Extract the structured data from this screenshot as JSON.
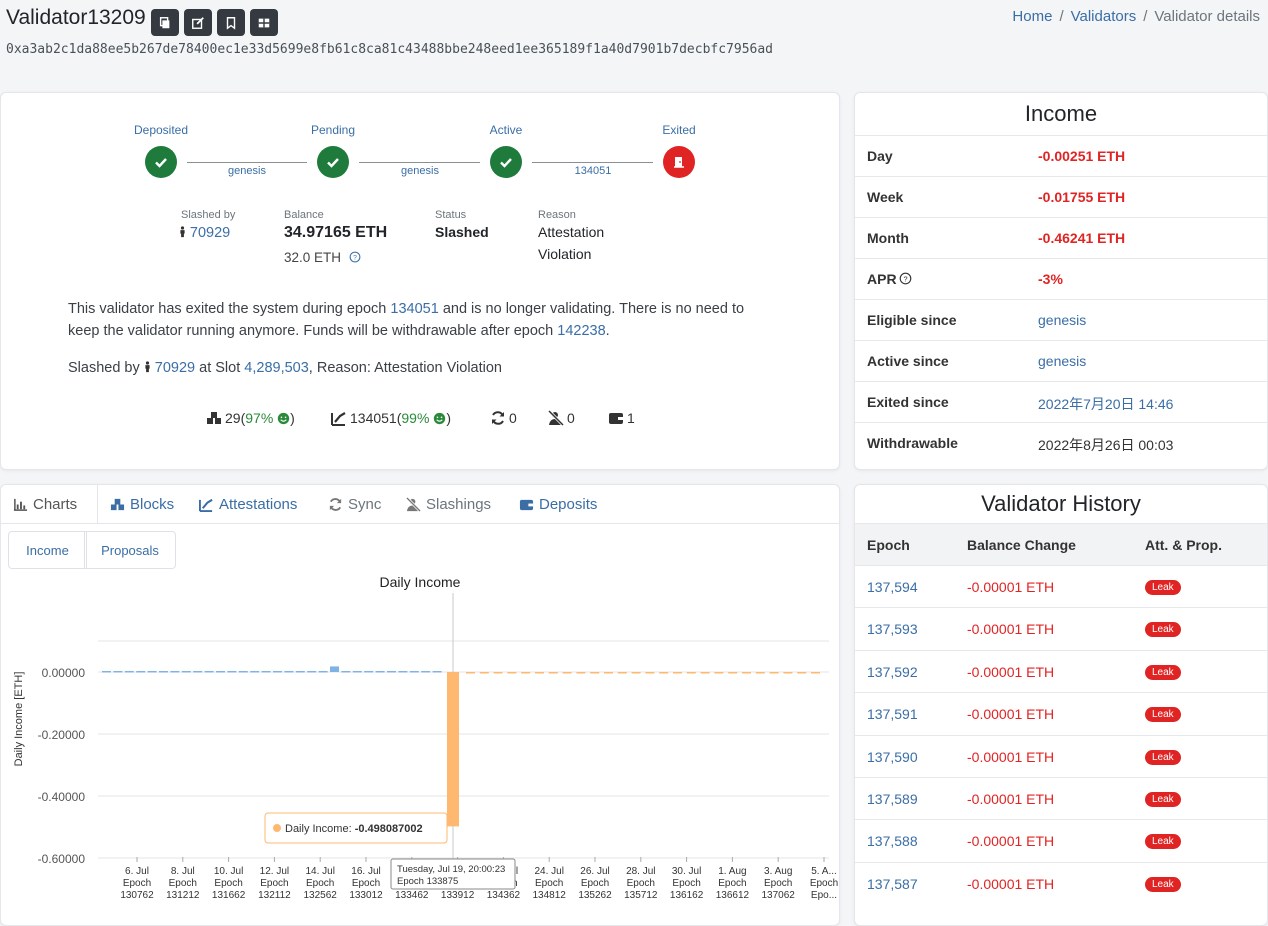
{
  "header": {
    "title": "Validator13209",
    "pubkey": "0xa3ab2c1da88ee5b267de78400ec1e33d5699e8fb61c8ca81c43488bbe248eed1ee365189f1a40d7901b7decbfc7956ad",
    "breadcrumb": {
      "home": "Home",
      "validators": "Validators",
      "current": "Validator details"
    },
    "buttons": [
      {
        "icon": "copy-icon"
      },
      {
        "icon": "edit-icon"
      },
      {
        "icon": "bookmark-icon"
      },
      {
        "icon": "table-icon"
      }
    ]
  },
  "status": {
    "stages": [
      {
        "label": "Deposited",
        "state": "ok"
      },
      {
        "label": "Pending",
        "state": "ok"
      },
      {
        "label": "Active",
        "state": "ok"
      },
      {
        "label": "Exited",
        "state": "exit"
      }
    ],
    "connectors": [
      "genesis",
      "genesis",
      "134051"
    ],
    "slashed_by_label": "Slashed by",
    "slashed_by_value": "70929",
    "balance_label": "Balance",
    "balance_value": "34.97165 ETH",
    "effective_balance": "32.0 ETH",
    "status_label": "Status",
    "status_value": "Slashed",
    "reason_label": "Reason",
    "reason_line1": "Attestation",
    "reason_line2": "Violation",
    "message": {
      "p1": "This validator has exited the system during epoch ",
      "epoch": "134051",
      "p2": " and is no longer validating. There is no need to keep the validator running anymore. Funds will be withdrawable after epoch ",
      "withdraw_epoch": "142238",
      "p3": "."
    },
    "slash_line": {
      "prefix": "Slashed by ",
      "validator": "70929",
      "mid": " at Slot ",
      "slot": "4,289,503",
      "suffix": ", Reason: Attestation Violation"
    },
    "stats": {
      "blocks": "29",
      "blocks_pct": "97%",
      "attestations": "134051",
      "attestations_pct": "99%",
      "sync": "0",
      "slashings": "0",
      "deposits": "1"
    }
  },
  "income": {
    "title": "Income",
    "rows": [
      {
        "label": "Day",
        "value": "-0.00251 ETH",
        "style": "neg"
      },
      {
        "label": "Week",
        "value": "-0.01755 ETH",
        "style": "neg"
      },
      {
        "label": "Month",
        "value": "-0.46241 ETH",
        "style": "neg"
      },
      {
        "label": "APR",
        "value": "-3%",
        "style": "neg"
      },
      {
        "label": "Eligible since",
        "value": "genesis",
        "style": "link"
      },
      {
        "label": "Active since",
        "value": "genesis",
        "style": "link"
      },
      {
        "label": "Exited since",
        "value": "2022年7月20日 14:46",
        "style": "link"
      },
      {
        "label": "Withdrawable",
        "value": "2022年8月26日 00:03",
        "style": "plain"
      }
    ]
  },
  "tabs": [
    {
      "label": "Charts",
      "icon": "chart-icon",
      "active": true
    },
    {
      "label": "Blocks",
      "icon": "cubes-icon",
      "active": false
    },
    {
      "label": "Attestations",
      "icon": "attestation-icon",
      "active": false
    },
    {
      "label": "Sync",
      "icon": "sync-icon",
      "active": false
    },
    {
      "label": "Slashings",
      "icon": "slashings-icon",
      "active": false
    },
    {
      "label": "Deposits",
      "icon": "wallet-icon",
      "active": false
    }
  ],
  "subtabs": [
    {
      "label": "Income"
    },
    {
      "label": "Proposals"
    }
  ],
  "chart_data": {
    "type": "bar",
    "title": "Daily Income",
    "ylabel": "Daily Income [ETH]",
    "ylim": [
      -0.6,
      0.1
    ],
    "yticks": [
      "0.00000",
      "-0.20000",
      "-0.40000",
      "-0.60000"
    ],
    "xticks": [
      {
        "date": "6. Jul",
        "epoch": "130762"
      },
      {
        "date": "8. Jul",
        "epoch": "131212"
      },
      {
        "date": "10. Jul",
        "epoch": "131662"
      },
      {
        "date": "12. Jul",
        "epoch": "132112"
      },
      {
        "date": "14. Jul",
        "epoch": "132562"
      },
      {
        "date": "16. Jul",
        "epoch": "133012"
      },
      {
        "date": "18. Jul",
        "epoch": "133462"
      },
      {
        "date": "20. Jul",
        "epoch": "133912"
      },
      {
        "date": "22. Jul",
        "epoch": "134362"
      },
      {
        "date": "24. Jul",
        "epoch": "134812"
      },
      {
        "date": "26. Jul",
        "epoch": "135262"
      },
      {
        "date": "28. Jul",
        "epoch": "135712"
      },
      {
        "date": "30. Jul",
        "epoch": "136162"
      },
      {
        "date": "1. Aug",
        "epoch": "136612"
      },
      {
        "date": "3. Aug",
        "epoch": "137062"
      },
      {
        "date": "5. A...",
        "epoch": "Epo..."
      }
    ],
    "series": [
      {
        "values_before_exit": [
          0.0001,
          0.0001,
          0.0001,
          0.0001,
          0.0001,
          0.0001,
          0.0001,
          0.0001,
          0.0001,
          0.0001,
          0.0001,
          0.0001,
          0.0001,
          0.0001,
          0.0001,
          0.0001,
          0.0001,
          0.0001,
          0.0001,
          0.0001,
          0.018,
          0.0001,
          0.0001,
          0.0001,
          0.0001,
          0.0001,
          0.0001,
          0.0001,
          0.0001,
          0.0001
        ],
        "exit_value": -0.498087002,
        "values_after_exit": -0.0025,
        "days_after_exit": 26
      }
    ],
    "tooltip": {
      "series_label": "Daily Income: ",
      "value": "-0.498087002",
      "date": "Tuesday, Jul 19, 20:00:23",
      "epoch": "Epoch 133875"
    }
  },
  "history": {
    "title": "Validator History",
    "columns": [
      "Epoch",
      "Balance Change",
      "Att. & Prop."
    ],
    "rows": [
      {
        "epoch": "137,594",
        "change": "-0.00001 ETH",
        "badge": "Leak"
      },
      {
        "epoch": "137,593",
        "change": "-0.00001 ETH",
        "badge": "Leak"
      },
      {
        "epoch": "137,592",
        "change": "-0.00001 ETH",
        "badge": "Leak"
      },
      {
        "epoch": "137,591",
        "change": "-0.00001 ETH",
        "badge": "Leak"
      },
      {
        "epoch": "137,590",
        "change": "-0.00001 ETH",
        "badge": "Leak"
      },
      {
        "epoch": "137,589",
        "change": "-0.00001 ETH",
        "badge": "Leak"
      },
      {
        "epoch": "137,588",
        "change": "-0.00001 ETH",
        "badge": "Leak"
      },
      {
        "epoch": "137,587",
        "change": "-0.00001 ETH",
        "badge": "Leak"
      }
    ]
  },
  "colors": {
    "green": "#1e7b3c",
    "red": "#e02424",
    "link": "#3a6ea5",
    "bar_pos": "#7fb3e6",
    "bar_neg": "#ffb870"
  }
}
